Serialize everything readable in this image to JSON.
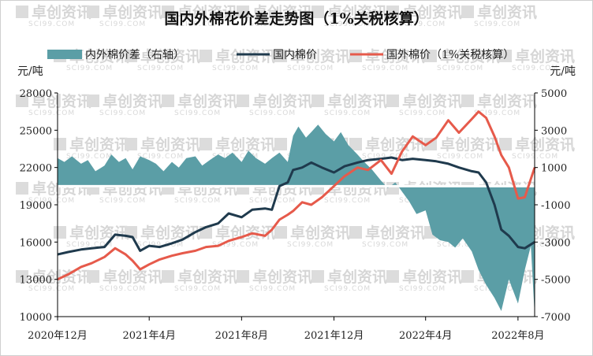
{
  "chart_data": {
    "type": "line",
    "title": "国内外棉花价差走势图（1%关税核算）",
    "left_unit": "元/吨",
    "right_unit": "元/吨",
    "watermark": {
      "brand": "卓创资讯",
      "url": "SCI99.COM"
    },
    "legend_position": "top",
    "left_axis": {
      "ticks": [
        10000,
        13000,
        16000,
        19000,
        22000,
        25000,
        28000
      ],
      "ylim": [
        10000,
        28000
      ]
    },
    "right_axis": {
      "ticks": [
        -7000,
        -5000,
        -3000,
        -1000,
        1000,
        3000,
        5000
      ],
      "ylim": [
        -7000,
        5000
      ]
    },
    "x_labels": [
      {
        "label": "2020年12月",
        "x": "2020-12-01"
      },
      {
        "label": "2021年4月",
        "x": "2021-04-01"
      },
      {
        "label": "2021年8月",
        "x": "2021-08-01"
      },
      {
        "label": "2021年12月",
        "x": "2021-12-01"
      },
      {
        "label": "2022年4月",
        "x": "2022-04-01"
      },
      {
        "label": "2022年8月",
        "x": "2022-08-01"
      }
    ],
    "x_range": [
      "2020-12-01",
      "2022-08-23"
    ],
    "grid": false,
    "colors": {
      "spread": "#5b9ea6",
      "domestic": "#1f3a4d",
      "international": "#e65a4b"
    },
    "series": [
      {
        "name": "内外棉价差（右轴）",
        "type": "area",
        "axis": "right",
        "x": [
          "2020-12-01",
          "2020-12-10",
          "2020-12-20",
          "2021-01-01",
          "2021-01-10",
          "2021-01-20",
          "2021-02-01",
          "2021-02-10",
          "2021-02-20",
          "2021-03-01",
          "2021-03-10",
          "2021-03-20",
          "2021-04-01",
          "2021-04-10",
          "2021-04-20",
          "2021-05-01",
          "2021-05-10",
          "2021-05-20",
          "2021-06-01",
          "2021-06-10",
          "2021-06-20",
          "2021-07-01",
          "2021-07-10",
          "2021-07-20",
          "2021-08-01",
          "2021-08-10",
          "2021-08-20",
          "2021-09-01",
          "2021-09-10",
          "2021-09-20",
          "2021-10-01",
          "2021-10-08",
          "2021-10-15",
          "2021-10-25",
          "2021-11-01",
          "2021-11-10",
          "2021-11-20",
          "2021-12-01",
          "2021-12-10",
          "2021-12-20",
          "2022-01-01",
          "2022-01-10",
          "2022-01-20",
          "2022-02-01",
          "2022-02-10",
          "2022-02-20",
          "2022-03-01",
          "2022-03-10",
          "2022-03-20",
          "2022-04-01",
          "2022-04-10",
          "2022-04-20",
          "2022-05-01",
          "2022-05-10",
          "2022-05-20",
          "2022-06-01",
          "2022-06-10",
          "2022-06-20",
          "2022-07-01",
          "2022-07-10",
          "2022-07-20",
          "2022-08-01",
          "2022-08-10",
          "2022-08-18",
          "2022-08-23"
        ],
        "values": [
          1500,
          1300,
          1600,
          1200,
          1400,
          800,
          1100,
          1700,
          1300,
          1500,
          900,
          1600,
          1400,
          1200,
          800,
          1300,
          1000,
          1500,
          1600,
          1100,
          1400,
          1700,
          1500,
          1800,
          1300,
          1900,
          1500,
          1200,
          1500,
          1800,
          1300,
          2700,
          3200,
          2600,
          2900,
          3300,
          2800,
          2400,
          2900,
          2200,
          1700,
          1300,
          900,
          300,
          -100,
          200,
          -300,
          -800,
          -1500,
          -1300,
          -2600,
          -2900,
          -3000,
          -3300,
          -2800,
          -3500,
          -4500,
          -5300,
          -6000,
          -6700,
          -5000,
          -6300,
          -4500,
          -3200,
          -6900
        ]
      },
      {
        "name": "国内棉价",
        "type": "line",
        "axis": "left",
        "x": [
          "2020-12-01",
          "2020-12-15",
          "2021-01-01",
          "2021-01-15",
          "2021-02-01",
          "2021-02-15",
          "2021-03-01",
          "2021-03-10",
          "2021-03-20",
          "2021-04-01",
          "2021-04-15",
          "2021-05-01",
          "2021-05-15",
          "2021-06-01",
          "2021-06-15",
          "2021-07-01",
          "2021-07-15",
          "2021-08-01",
          "2021-08-15",
          "2021-09-01",
          "2021-09-10",
          "2021-09-20",
          "2021-10-01",
          "2021-10-08",
          "2021-10-20",
          "2021-11-01",
          "2021-11-15",
          "2021-12-01",
          "2021-12-15",
          "2022-01-01",
          "2022-01-15",
          "2022-02-01",
          "2022-02-15",
          "2022-03-01",
          "2022-03-15",
          "2022-04-01",
          "2022-04-15",
          "2022-05-01",
          "2022-05-15",
          "2022-06-01",
          "2022-06-10",
          "2022-06-20",
          "2022-07-01",
          "2022-07-10",
          "2022-07-20",
          "2022-08-01",
          "2022-08-10",
          "2022-08-23"
        ],
        "values": [
          15000,
          15200,
          15400,
          15500,
          15600,
          16600,
          16500,
          16400,
          15300,
          15700,
          15600,
          15900,
          16200,
          16800,
          17200,
          17500,
          18300,
          18000,
          18600,
          18700,
          18600,
          20500,
          20800,
          21800,
          22000,
          22400,
          22000,
          21600,
          22100,
          22400,
          22600,
          22700,
          22800,
          22600,
          22700,
          22600,
          22500,
          22300,
          22000,
          21700,
          21600,
          20800,
          19000,
          17000,
          16500,
          15600,
          15500,
          16000
        ]
      },
      {
        "name": "国外棉价（1%关税核算）",
        "type": "line",
        "axis": "left",
        "x": [
          "2020-12-01",
          "2020-12-15",
          "2021-01-01",
          "2021-01-15",
          "2021-02-01",
          "2021-02-15",
          "2021-03-01",
          "2021-03-10",
          "2021-03-20",
          "2021-04-01",
          "2021-04-15",
          "2021-05-01",
          "2021-05-15",
          "2021-06-01",
          "2021-06-15",
          "2021-07-01",
          "2021-07-15",
          "2021-08-01",
          "2021-08-15",
          "2021-09-01",
          "2021-09-10",
          "2021-09-20",
          "2021-10-01",
          "2021-10-08",
          "2021-10-20",
          "2021-11-01",
          "2021-11-15",
          "2021-12-01",
          "2021-12-15",
          "2022-01-01",
          "2022-01-15",
          "2022-02-01",
          "2022-02-15",
          "2022-03-01",
          "2022-03-15",
          "2022-04-01",
          "2022-04-15",
          "2022-05-01",
          "2022-05-15",
          "2022-06-01",
          "2022-06-10",
          "2022-06-20",
          "2022-07-01",
          "2022-07-10",
          "2022-07-20",
          "2022-08-01",
          "2022-08-10",
          "2022-08-23"
        ],
        "values": [
          13000,
          13400,
          14000,
          14300,
          14800,
          15500,
          15000,
          14500,
          13800,
          14200,
          14600,
          14900,
          15100,
          15300,
          15600,
          15700,
          16100,
          16400,
          16700,
          16500,
          17000,
          17800,
          18200,
          18500,
          19200,
          19000,
          19600,
          20500,
          21300,
          22000,
          21800,
          22600,
          21500,
          23300,
          24500,
          23800,
          24400,
          25800,
          24800,
          25900,
          26500,
          26000,
          24500,
          23000,
          22000,
          19500,
          19600,
          22000
        ]
      }
    ]
  }
}
